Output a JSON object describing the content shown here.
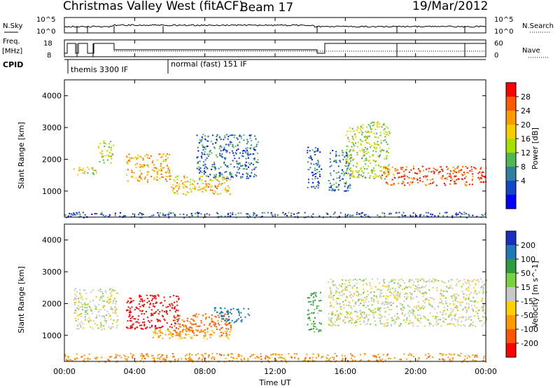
{
  "header": {
    "radar_name": "Christmas Valley West (fitACF)",
    "beam": "Beam 17",
    "date": "19/Mar/2012"
  },
  "top_panels": {
    "nsky_label": "N.Sky",
    "nsearch_label": "N.Search",
    "noise_ticks_left": [
      "10^5",
      "10^0"
    ],
    "noise_ticks_right": [
      "10^5",
      "10^0"
    ],
    "freq_label_1": "Freq.",
    "freq_label_2": "[MHz]",
    "freq_ticks": [
      "18",
      "8"
    ],
    "nave_label": "Nave",
    "nave_ticks": [
      "60",
      "0"
    ],
    "cpid_label": "CPID",
    "cpid_modes": [
      {
        "label": "themis 3300 IF",
        "start": 0.0
      },
      {
        "label": "normal (fast) 151 IF",
        "start": 6.0
      }
    ]
  },
  "axes": {
    "ylabel": "Slant Range [km]",
    "xlabel": "Time UT",
    "x_ticks": [
      "00:00",
      "04:00",
      "08:00",
      "12:00",
      "16:00",
      "20:00",
      "00:00"
    ],
    "y_ticks": [
      "1000",
      "2000",
      "3000",
      "4000"
    ]
  },
  "power_colorbar": {
    "label": "Power [dB]",
    "ticks": [
      "28",
      "24",
      "20",
      "16",
      "12",
      "8",
      "4"
    ],
    "colors": [
      "#ff0000",
      "#ff5a00",
      "#ff9a00",
      "#f7cc00",
      "#a6e000",
      "#52b652",
      "#2f7fa0",
      "#1446c8",
      "#0000ff"
    ]
  },
  "velocity_colorbar": {
    "label": "Velocity [m s^-1]",
    "ticks": [
      "200",
      "100",
      "50",
      "15",
      "-15",
      "-50",
      "-100",
      "-200"
    ],
    "colors": [
      "#1a2fc0",
      "#1d7ab5",
      "#2f9a40",
      "#7ad040",
      "#c8c8c8",
      "#ffd000",
      "#ff9900",
      "#ff5500",
      "#ff0000"
    ]
  },
  "chart_data": {
    "type": "heatmap",
    "title": "Christmas Valley West (fitACF)",
    "subtitle": "Beam 17",
    "date": "19/Mar/2012",
    "xlabel": "Time UT",
    "ylabel": "Slant Range [km]",
    "xlim": [
      0,
      24
    ],
    "ylim": [
      180,
      4500
    ],
    "x_ticks_hours": [
      0,
      4,
      8,
      12,
      16,
      20,
      24
    ],
    "y_ticks_km": [
      1000,
      2000,
      3000,
      4000
    ],
    "power_panel": {
      "regions": [
        {
          "t0": 0.5,
          "t1": 1.8,
          "r0": 1500,
          "r1": 1800,
          "level": 0.55
        },
        {
          "t0": 1.9,
          "t1": 2.8,
          "r0": 1900,
          "r1": 2600,
          "level": 0.5
        },
        {
          "t0": 3.5,
          "t1": 6.0,
          "r0": 1300,
          "r1": 2200,
          "level": 0.7
        },
        {
          "t0": 6.0,
          "t1": 9.5,
          "r0": 900,
          "r1": 1500,
          "level": 0.65
        },
        {
          "t0": 7.5,
          "t1": 11.0,
          "r0": 1400,
          "r1": 2800,
          "level": 0.25
        },
        {
          "t0": 13.8,
          "t1": 14.6,
          "r0": 1100,
          "r1": 2400,
          "level": 0.2
        },
        {
          "t0": 15.0,
          "t1": 16.3,
          "r0": 1000,
          "r1": 2300,
          "level": 0.25
        },
        {
          "t0": 16.0,
          "t1": 18.5,
          "r0": 1400,
          "r1": 3200,
          "level": 0.5
        },
        {
          "t0": 18.0,
          "t1": 24.0,
          "r0": 1200,
          "r1": 1800,
          "level": 0.85
        },
        {
          "t0": 0.0,
          "t1": 24.0,
          "r0": 180,
          "r1": 350,
          "level": 0.2
        }
      ]
    },
    "velocity_panel": {
      "regions": [
        {
          "t0": 0.5,
          "t1": 3.0,
          "r0": 1200,
          "r1": 2500,
          "level": 0.0
        },
        {
          "t0": 3.5,
          "t1": 6.5,
          "r0": 1200,
          "r1": 2300,
          "level": -180
        },
        {
          "t0": 6.0,
          "t1": 9.5,
          "r0": 1000,
          "r1": 1700,
          "level": -120
        },
        {
          "t0": 5.0,
          "t1": 9.5,
          "r0": 900,
          "r1": 1200,
          "level": -60
        },
        {
          "t0": 8.5,
          "t1": 10.5,
          "r0": 1400,
          "r1": 1900,
          "level": 120
        },
        {
          "t0": 13.8,
          "t1": 14.6,
          "r0": 1100,
          "r1": 2400,
          "level": 40
        },
        {
          "t0": 15.0,
          "t1": 24.0,
          "r0": 1300,
          "r1": 2800,
          "level": 0.0
        },
        {
          "t0": 0.0,
          "t1": 24.0,
          "r0": 180,
          "r1": 450,
          "level": -80
        }
      ]
    }
  }
}
